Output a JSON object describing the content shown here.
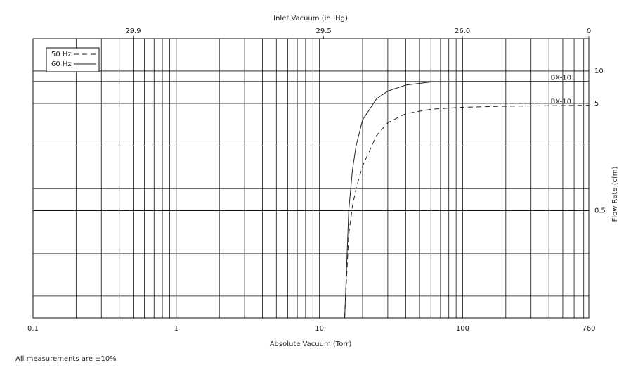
{
  "chart_data": {
    "type": "line",
    "x_label": "Absolute Vacuum (Torr)",
    "x2_label": "Inlet Vacuum (in. Hg)",
    "y_label": "Flow Rate (cfm)",
    "footnote": "All measurements are ±10%",
    "log_x": true,
    "log_y": true,
    "grid": true,
    "legend": "upper left",
    "xlim": [
      0.1,
      760
    ],
    "xticks": [
      0.1,
      1,
      10,
      100,
      760
    ],
    "x2ticks": [
      {
        "value": 0.5,
        "label": "29.9"
      },
      {
        "value": 10.7,
        "label": "29.5"
      },
      {
        "value": 99.6,
        "label": "26.0"
      },
      {
        "value": 760,
        "label": "0"
      }
    ],
    "ylim": [
      0.05,
      20
    ],
    "yticks": [
      0.5,
      5,
      10
    ],
    "x": [
      15,
      16,
      17,
      18,
      20,
      25,
      30,
      40,
      60,
      100,
      200,
      760
    ],
    "series": [
      {
        "name": "50 Hz",
        "color": "#222222",
        "dashed": true,
        "end_label": "BX-10",
        "values": [
          0.05,
          0.3,
          0.55,
          0.8,
          1.3,
          2.5,
          3.3,
          4.0,
          4.4,
          4.6,
          4.7,
          4.8
        ]
      },
      {
        "name": "60 Hz",
        "color": "#222222",
        "dashed": false,
        "end_label": "BX-10",
        "values": [
          0.05,
          0.5,
          1.2,
          2.0,
          3.5,
          5.5,
          6.5,
          7.4,
          7.9,
          8.0,
          8.0,
          8.0
        ]
      }
    ]
  }
}
